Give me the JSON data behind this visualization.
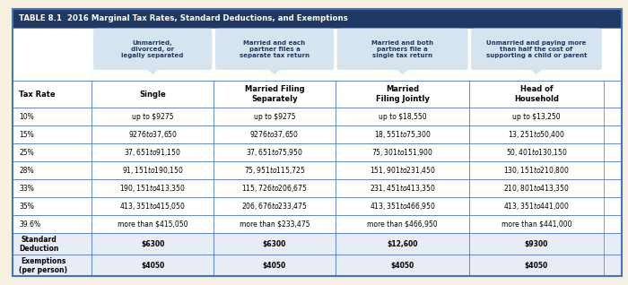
{
  "title": "TABLE 8.1  2016 Marginal Tax Rates, Standard Deductions, and Exemptions",
  "title_bg": "#1f3864",
  "title_color": "#ffffff",
  "header_bg": "#c9d9f0",
  "header_text_color": "#1f3864",
  "col_header_bg": "#ffffff",
  "col_header_color": "#000000",
  "bubble_bg": "#d6e4f0",
  "bubble_text_color": "#1f3864",
  "row_alt1": "#ffffff",
  "row_alt2": "#ffffff",
  "border_color": "#4472c4",
  "bold_row_bg": "#e8edf5",
  "bubbles": [
    "Unmarried,\ndivorced, or\nlegally separated",
    "Married and each\npartner files a\nseparate tax return",
    "Married and both\npartners file a\nsingle tax return",
    "Unmarried and paying more\nthan half the cost of\nsupporting a child or parent"
  ],
  "col_headers": [
    "Tax Rate",
    "Single",
    "Married Filing\nSeparately",
    "Married\nFiling Jointly",
    "Head of\nHousehold"
  ],
  "rows": [
    [
      "10%",
      "up to $9275",
      "up to $9275",
      "up to $18,550",
      "up to $13,250"
    ],
    [
      "15%",
      "$9276 to $37,650",
      "$9276 to $37,650",
      "$18,551 to $75,300",
      "$13,251 to $50,400"
    ],
    [
      "25%",
      "$37,651 to $91,150",
      "$37,651 to $75,950",
      "$75,301 to $151,900",
      "$50,401 to $130,150"
    ],
    [
      "28%",
      "$91,151 to $190,150",
      "$75,951 to $115,725",
      "$151,901 to $231,450",
      "$130,151 to $210,800"
    ],
    [
      "33%",
      "$190,151 to $413,350",
      "$115,726 to $206,675",
      "$231,451 to $413,350",
      "$210,801 to $413,350"
    ],
    [
      "35%",
      "$413,351 to $415,050",
      "$206,676 to $233,475",
      "$413,351 to $466,950",
      "$413,351 to $441,000"
    ],
    [
      "39.6%",
      "more than $415,050",
      "more than $233,475",
      "more than $466,950",
      "more than $441,000"
    ],
    [
      "Standard\nDeduction",
      "$6300",
      "$6300",
      "$12,600",
      "$9300"
    ],
    [
      "Exemptions\n(per person)",
      "$4050",
      "$4050",
      "$4050",
      "$4050"
    ]
  ],
  "bold_rows": [
    7,
    8
  ],
  "separator_rows": [
    6
  ],
  "fig_bg": "#f5f0e0"
}
